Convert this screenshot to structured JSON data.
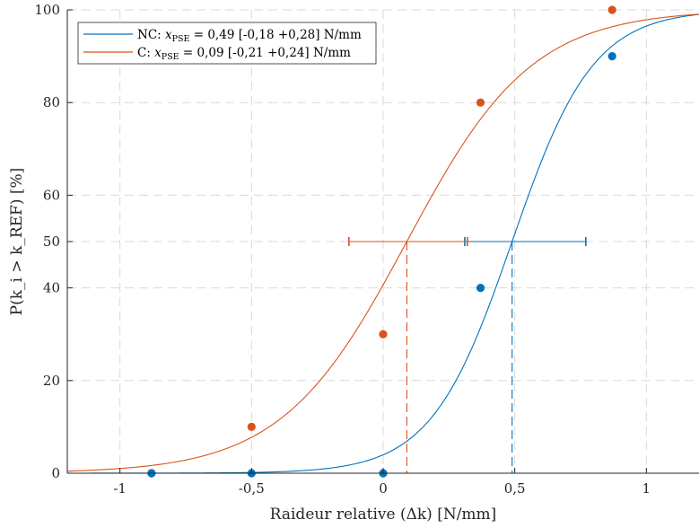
{
  "chart_data": {
    "type": "scatter",
    "xlabel": "Raideur relative (Δk) [N/mm]",
    "ylabel": "P(k_i > k_REF) [%]",
    "xlim": [
      -1.2,
      1.2
    ],
    "ylim": [
      0,
      100
    ],
    "xticks": [
      -1,
      -0.5,
      0,
      0.5,
      1
    ],
    "xtick_labels": [
      "-1",
      "-0,5",
      "0",
      "0,5",
      "1"
    ],
    "yticks": [
      0,
      20,
      40,
      50,
      60,
      80,
      100
    ],
    "ytick_labels": [
      "0",
      "20",
      "40",
      "50",
      "60",
      "80",
      "100"
    ],
    "grid": true,
    "legend_position": "top-left",
    "series": [
      {
        "name": "NC: x_PSE = 0,49 [-0,18 +0,28] N/mm",
        "legend": {
          "prefix": "NC: ",
          "var": "x",
          "sub": "PSE",
          "suffix": " = 0,49 [-0,18 +0,28] N/mm"
        },
        "color": "#0072bd",
        "pse": 0.49,
        "ci": [
          0.31,
          0.77
        ],
        "fit_slope": 6.5,
        "points": [
          {
            "x": -0.88,
            "y": 0
          },
          {
            "x": -0.5,
            "y": 0
          },
          {
            "x": 0,
            "y": 0
          },
          {
            "x": 0.37,
            "y": 40
          },
          {
            "x": 0.87,
            "y": 90
          }
        ]
      },
      {
        "name": "C: x_PSE = 0,09 [-0,21 +0,24] N/mm",
        "legend": {
          "prefix": "C: ",
          "var": "x",
          "sub": "PSE",
          "suffix": " = 0,09 [-0,21 +0,24] N/mm"
        },
        "color": "#d95319",
        "pse": 0.09,
        "ci": [
          -0.13,
          0.32
        ],
        "fit_slope": 4.2,
        "points": [
          {
            "x": -0.88,
            "y": 0
          },
          {
            "x": -0.5,
            "y": 10
          },
          {
            "x": 0,
            "y": 30
          },
          {
            "x": 0.37,
            "y": 80
          },
          {
            "x": 0.87,
            "y": 100
          }
        ]
      }
    ]
  }
}
